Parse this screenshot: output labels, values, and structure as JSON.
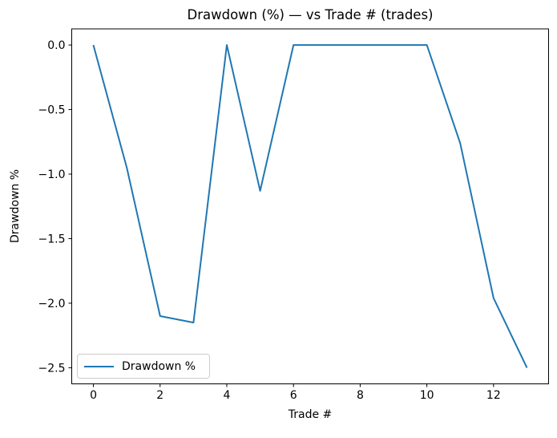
{
  "chart_data": {
    "type": "line",
    "title": "Drawdown (%) — vs Trade # (trades)",
    "xlabel": "Trade #",
    "ylabel": "Drawdown %",
    "x": [
      0,
      1,
      2,
      3,
      4,
      5,
      6,
      7,
      8,
      9,
      10,
      11,
      12,
      13
    ],
    "series": [
      {
        "name": "Drawdown %",
        "color": "#1f77b4",
        "values": [
          0.0,
          -0.95,
          -2.1,
          -2.15,
          0.0,
          -1.13,
          0.0,
          0.0,
          0.0,
          0.0,
          0.0,
          -0.76,
          -1.96,
          -2.5
        ]
      }
    ],
    "xlim": [
      -0.65,
      13.65
    ],
    "ylim": [
      -2.625,
      0.125
    ],
    "x_ticks": {
      "values": [
        0,
        2,
        4,
        6,
        8,
        10,
        12
      ],
      "labels": [
        "0",
        "2",
        "4",
        "6",
        "8",
        "10",
        "12"
      ]
    },
    "y_ticks": {
      "values": [
        0.0,
        -0.5,
        -1.0,
        -1.5,
        -2.0,
        -2.5
      ],
      "labels": [
        "0.0",
        "−0.5",
        "−1.0",
        "−1.5",
        "−2.0",
        "−2.5"
      ]
    },
    "grid": false,
    "legend": {
      "position": "lower left",
      "entries": [
        "Drawdown %"
      ]
    },
    "background_color": "#ffffff",
    "spine_color": "#000000",
    "text_color": "#000000"
  }
}
